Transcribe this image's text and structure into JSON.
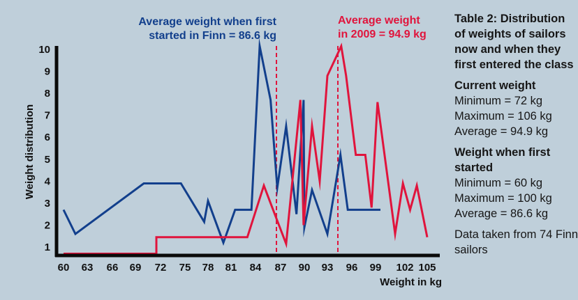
{
  "chart_data": {
    "type": "line",
    "title": "Table 2: Distribution of weights of sailors now and when they first entered the class",
    "xlabel": "Weight in kg",
    "ylabel": "Weight distribution",
    "x_ticks": [
      60,
      63,
      66,
      69,
      72,
      75,
      78,
      81,
      84,
      87,
      90,
      93,
      96,
      99,
      102,
      105
    ],
    "y_ticks": [
      1,
      2,
      3,
      4,
      5,
      6,
      7,
      8,
      9,
      10
    ],
    "xlim": [
      59.5,
      106.5
    ],
    "ylim": [
      0.6,
      10.2
    ],
    "grid": false,
    "colors": {
      "first_started": "#123f8c",
      "current": "#e0143c",
      "axis": "#0a0a0a"
    },
    "series": [
      {
        "name": "Weight when first started",
        "color": "#123f8c",
        "points": [
          [
            60,
            2.7
          ],
          [
            61.5,
            1.6
          ],
          [
            70,
            3.9
          ],
          [
            74.5,
            3.9
          ],
          [
            77.5,
            2.15
          ],
          [
            78,
            3.1
          ],
          [
            80,
            1.2
          ],
          [
            81.5,
            2.7
          ],
          [
            83.5,
            2.7
          ],
          [
            84.5,
            10.15
          ],
          [
            85.8,
            7.7
          ],
          [
            86.6,
            3.7
          ],
          [
            87.7,
            6.5
          ],
          [
            89,
            2.5
          ],
          [
            89.9,
            7.7
          ],
          [
            90,
            1.9
          ],
          [
            91,
            3.6
          ],
          [
            93,
            1.6
          ],
          [
            94.6,
            5.2
          ],
          [
            95.5,
            2.7
          ],
          [
            99.5,
            2.7
          ]
        ]
      },
      {
        "name": "Current weight (2009)",
        "color": "#e0143c",
        "points": [
          [
            60,
            0.7
          ],
          [
            71.5,
            0.7
          ],
          [
            71.5,
            1.45
          ],
          [
            83,
            1.45
          ],
          [
            85,
            3.8
          ],
          [
            86.6,
            2.2
          ],
          [
            87.7,
            1.15
          ],
          [
            89.5,
            7.7
          ],
          [
            89.9,
            2.0
          ],
          [
            91,
            6.5
          ],
          [
            92,
            4.0
          ],
          [
            93,
            8.8
          ],
          [
            94.7,
            10.15
          ],
          [
            95.3,
            8.8
          ],
          [
            96.5,
            5.2
          ],
          [
            97.7,
            5.2
          ],
          [
            98.5,
            2.8
          ],
          [
            99.2,
            7.6
          ],
          [
            101,
            1.6
          ],
          [
            101.8,
            3.9
          ],
          [
            102.7,
            2.7
          ],
          [
            103.6,
            3.8
          ],
          [
            105,
            1.45
          ]
        ]
      }
    ],
    "reference_lines": [
      {
        "name": "Average weight when first started",
        "x": 86.6,
        "color": "#e0143c",
        "style": "dashed"
      },
      {
        "name": "Average weight in 2009",
        "x": 94.9,
        "color": "#e0143c",
        "style": "dashed"
      }
    ],
    "annotations": [
      {
        "lines": [
          "Average weight when first",
          "started in Finn = 86.6 kg"
        ],
        "color": "#123f8c"
      },
      {
        "lines": [
          "Average weight",
          "in 2009 = 94.9 kg"
        ],
        "color": "#e0143c"
      }
    ]
  },
  "sidebar": {
    "title": "Table 2: Distribution of weights of sailors now and when they first entered the class",
    "current": {
      "heading": "Current weight",
      "min": "Minimum = 72 kg",
      "max": "Maximum = 106 kg",
      "avg": "Average = 94.9 kg"
    },
    "started": {
      "heading": "Weight when first started",
      "min": "Minimum = 60 kg",
      "max": "Maximum = 100 kg",
      "avg": "Average = 86.6 kg"
    },
    "note": "Data taken from 74 Finn sailors"
  }
}
